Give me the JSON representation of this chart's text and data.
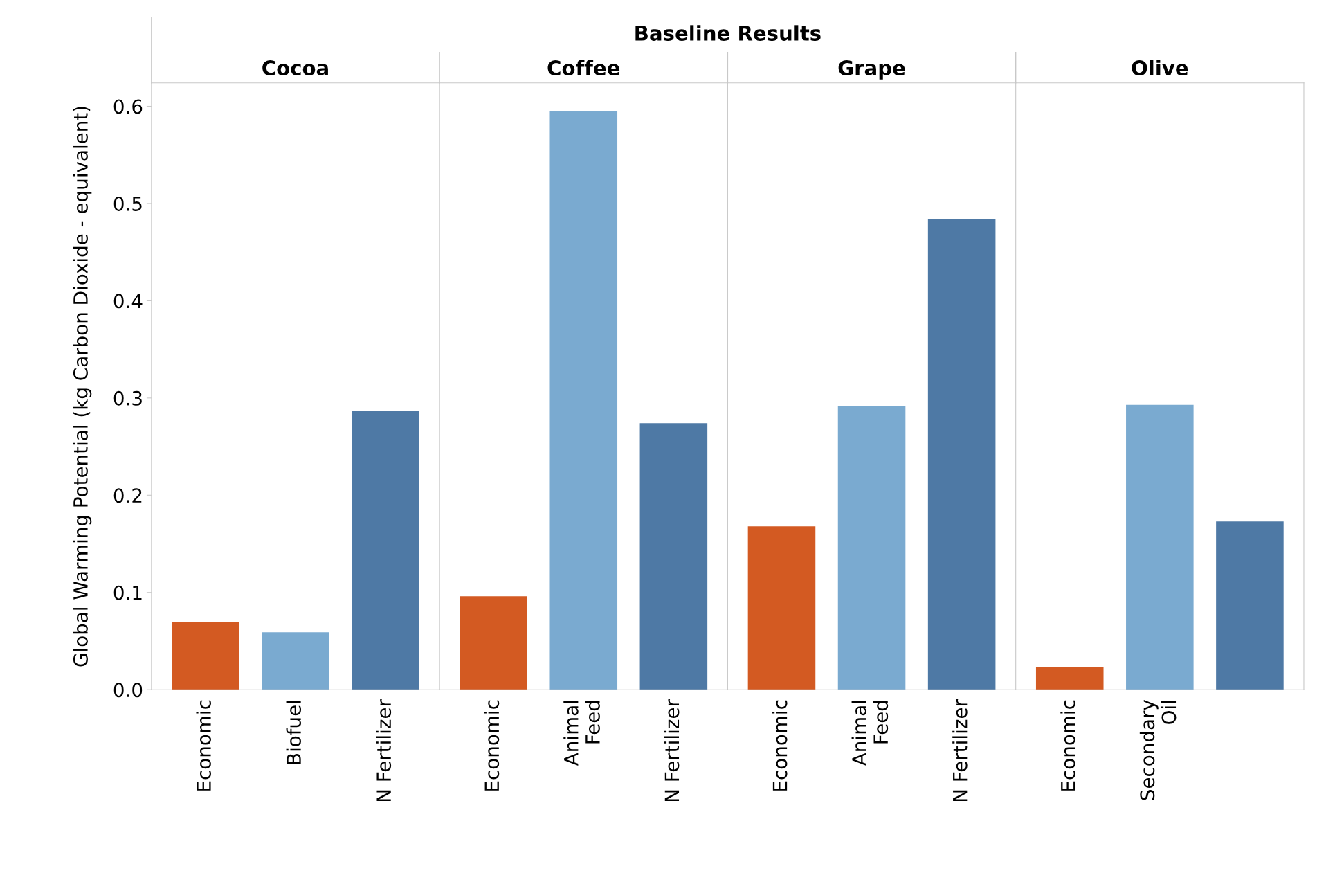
{
  "chart_data": [
    {
      "type": "bar",
      "title": "Cocoa",
      "annotations": [
        "Baseline Results"
      ],
      "ylabel": "Global Warming Potential (kg Carbon Dioxide - equivalent)",
      "categories": [
        "Economic",
        "Biofuel",
        "N Fertilizer"
      ],
      "values": [
        0.07,
        0.059,
        0.287
      ],
      "colors": [
        "#d35a22",
        "#7aaad0",
        "#4e79a5"
      ],
      "ylim": [
        0,
        0.624
      ],
      "yticks": [
        {
          "value": 0,
          "label": "0.0"
        },
        0.1,
        0.2,
        0.3,
        0.4,
        0.5,
        0.6
      ],
      "grid": false
    },
    {
      "type": "bar",
      "title": "Coffee",
      "categories": [
        "Economic",
        "Animal\nFeed",
        "N Fertilizer"
      ],
      "values": [
        0.096,
        0.595,
        0.274
      ],
      "colors": [
        "#d35a22",
        "#7aaad0",
        "#4e79a5"
      ],
      "ylim": [
        0,
        0.624
      ],
      "yticks": [
        0.0,
        0.1,
        0.2,
        0.3,
        0.4,
        0.5,
        0.6
      ],
      "tick_labels": "x",
      "grid": false
    },
    {
      "type": "bar",
      "title": "Grape",
      "categories": [
        "Economic",
        "Animal\nFeed",
        "N Fertilizer"
      ],
      "values": [
        0.168,
        0.292,
        0.484
      ],
      "colors": [
        "#d35a22",
        "#7aaad0",
        "#4e79a5"
      ],
      "ylim": [
        0,
        0.624
      ],
      "yticks": [
        0.0,
        0.1,
        0.2,
        0.3,
        0.4,
        0.5,
        0.6
      ],
      "tick_labels": "x",
      "grid": false
    },
    {
      "type": "bar",
      "title": "Olive",
      "categories": [
        "Economic",
        "Secondary\nOil",
        null
      ],
      "values": [
        0.023,
        0.293,
        0.173
      ],
      "colors": [
        "#d35a22",
        "#7aaad0",
        "#4e79a5"
      ],
      "ylim": [
        0,
        0.624
      ],
      "yticks": [
        0.0,
        0.1,
        0.2,
        0.3,
        0.4,
        0.5,
        0.6
      ],
      "tick_labels": "x",
      "grid": false
    }
  ]
}
